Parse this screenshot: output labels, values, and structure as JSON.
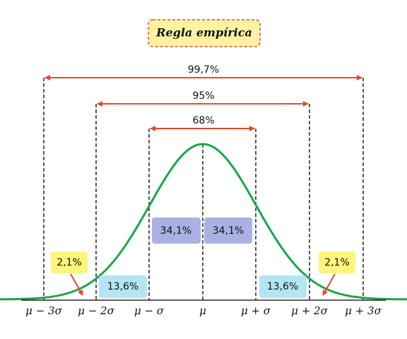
{
  "title": "Regla empírica",
  "intervals": [
    "99,7%",
    "95%",
    "68%"
  ],
  "regions": {
    "center_left": "34,1%",
    "center_right": "34,1%",
    "mid_left": "13,6%",
    "mid_right": "13,6%",
    "tail_left": "2,1%",
    "tail_right": "2,1%"
  },
  "axis_labels": [
    "μ − 3σ",
    "μ − 2σ",
    "μ − σ",
    "μ",
    "μ + σ",
    "μ + 2σ",
    "μ + 3σ"
  ]
}
